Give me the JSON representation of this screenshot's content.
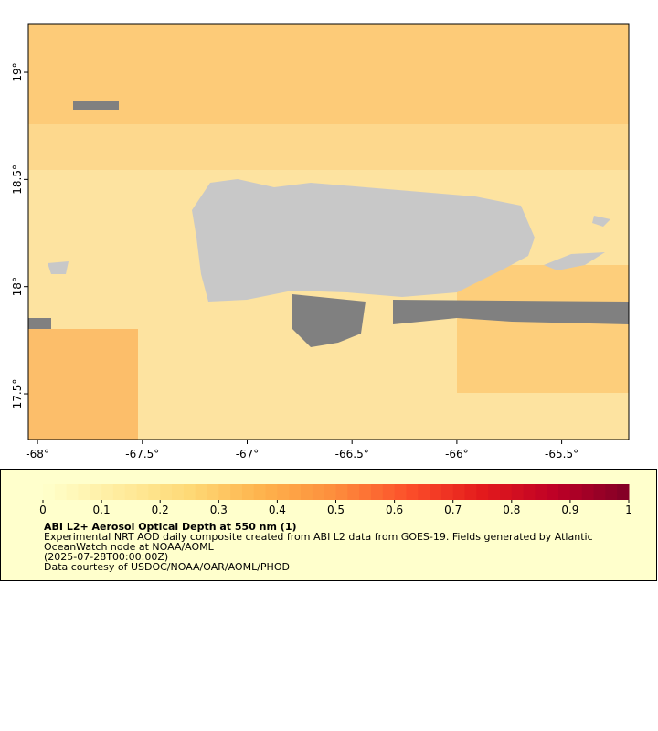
{
  "chart_data": {
    "type": "map",
    "title": "ABI L2+ Aerosol Optical Depth at 550 nm (1)",
    "description": [
      "Experimental NRT AOD daily composite created from ABI L2 data from GOES-19. Fields generated by Atlantic",
      "OceanWatch node at NOAA/AOML",
      "(2025-07-28T00:00:00Z)",
      "Data courtesy of USDOC/NOAA/OAR/AOML/PHOD"
    ],
    "xlim": [
      -68.044,
      -65.18
    ],
    "ylim": [
      17.287,
      19.226
    ],
    "xticks": [
      {
        "value": -68,
        "label": "-68°"
      },
      {
        "value": -67.5,
        "label": "-67.5°"
      },
      {
        "value": -67,
        "label": "-67°"
      },
      {
        "value": -66.5,
        "label": "-66.5°"
      },
      {
        "value": -66,
        "label": "-66°"
      },
      {
        "value": -65.5,
        "label": "-65.5°"
      }
    ],
    "yticks": [
      {
        "value": 17.5,
        "label": "17.5°"
      },
      {
        "value": 18,
        "label": "18°"
      },
      {
        "value": 18.5,
        "label": "18.5°"
      },
      {
        "value": 19,
        "label": "19°"
      }
    ],
    "colorbar": {
      "lim": [
        0,
        1
      ],
      "ticks": [
        0,
        0.1,
        0.2,
        0.3,
        0.4,
        0.5,
        0.6,
        0.7,
        0.8,
        0.9,
        1
      ],
      "colors": [
        "#ffffcc",
        "#ffeda0",
        "#fed976",
        "#feb24c",
        "#fd8d3c",
        "#fc4e2a",
        "#e31a1c",
        "#bd0026",
        "#800026"
      ]
    }
  }
}
